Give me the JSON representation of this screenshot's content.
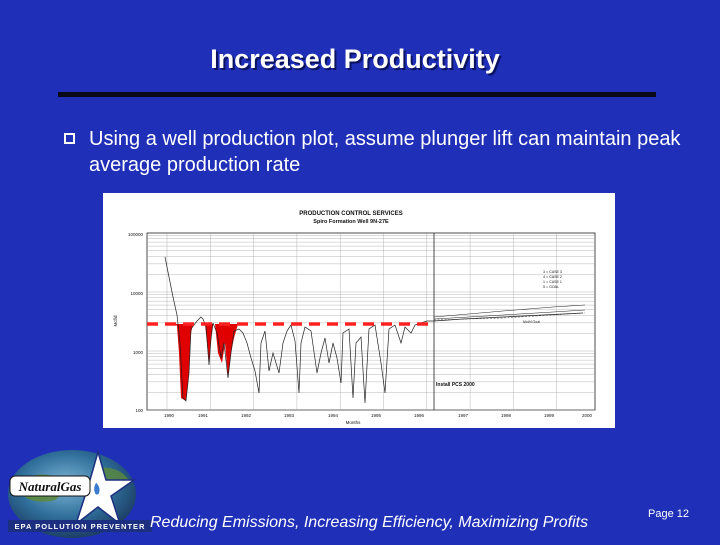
{
  "slide": {
    "title": "Increased Productivity",
    "bullet": "Using a well production plot, assume plunger lift can maintain peak average production rate",
    "footer": "Reducing Emissions, Increasing Efficiency, Maximizing Profits",
    "page": "Page 12"
  },
  "logo": {
    "text": "NaturalGas",
    "tagline": "EPA POLLUTION PREVENTER"
  },
  "chart": {
    "title": "PRODUCTION CONTROL SERVICES",
    "subtitle": "Spiro Formation Well 9N-27E",
    "ylabel": "Mcf/d",
    "xlabel": "Months",
    "y_ticks": [
      "100000",
      "10000",
      "1000",
      "100"
    ],
    "x_ticks": [
      "1990",
      "1991",
      "1992",
      "1993",
      "1994",
      "1995",
      "1996",
      "1997",
      "1998",
      "1999",
      "2000"
    ],
    "legend": [
      "3 = CASE 3",
      "4 = CASE 2",
      "1 = CASE 1",
      "5 = GOAL"
    ],
    "annotation_install": "Install PCS 2000",
    "annotation_goal": "Mcf/d Goal"
  },
  "colors": {
    "background": "#1f2fb8",
    "peak_line": "#ff2020",
    "fill": "#e00000"
  }
}
